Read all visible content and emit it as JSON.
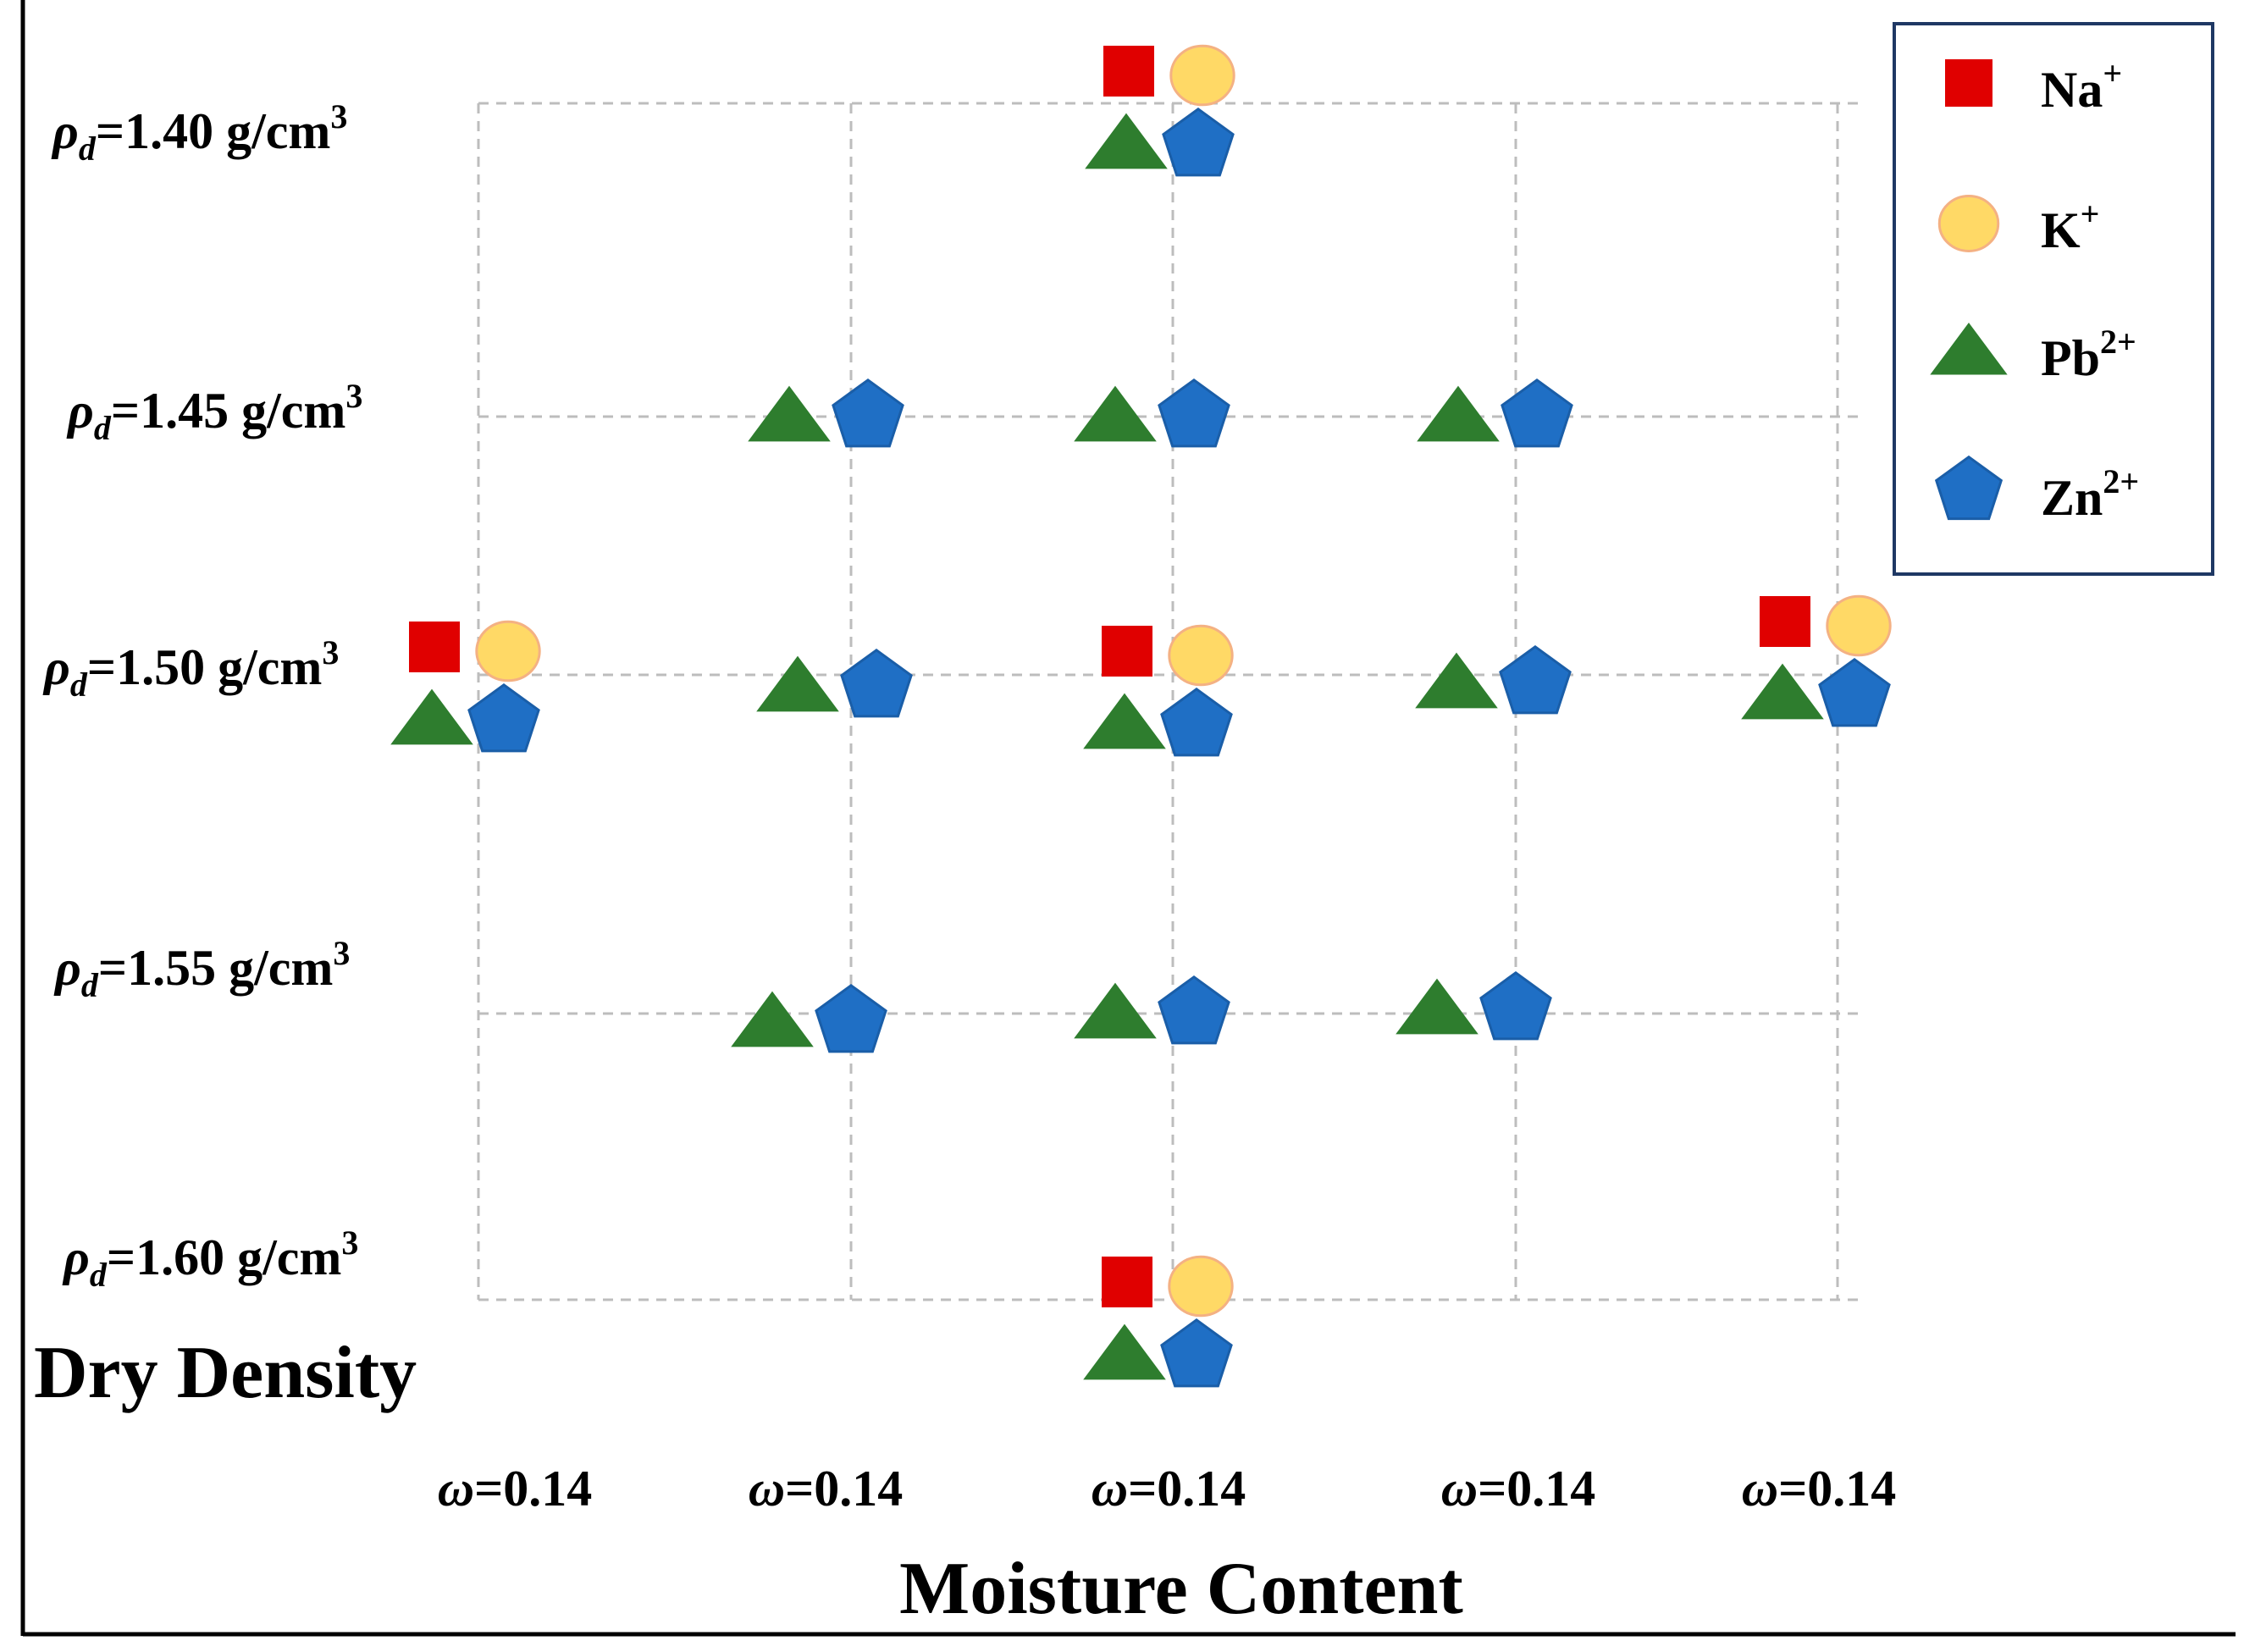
{
  "chart_data": {
    "type": "scatter",
    "title": "",
    "xlabel": "Moisture Content",
    "ylabel": "Dry Density",
    "x_tick_labels": [
      {
        "symbol": "ω",
        "text": "=0.14"
      },
      {
        "symbol": "ω",
        "text": "=0.14"
      },
      {
        "symbol": "ω",
        "text": "=0.14"
      },
      {
        "symbol": "ω",
        "text": "=0.14"
      },
      {
        "symbol": "ω",
        "text": "=0.14"
      }
    ],
    "y_tick_labels": [
      {
        "symbol": "ρ",
        "sub": "d",
        "text": "=1.40 g/cm",
        "sup": "3"
      },
      {
        "symbol": "ρ",
        "sub": "d",
        "text": "=1.45 g/cm",
        "sup": "3"
      },
      {
        "symbol": "ρ",
        "sub": "d",
        "text": "=1.50 g/cm",
        "sup": "3"
      },
      {
        "symbol": "ρ",
        "sub": "d",
        "text": "=1.55 g/cm",
        "sup": "3"
      },
      {
        "symbol": "ρ",
        "sub": "d",
        "text": "=1.60 g/cm",
        "sup": "3"
      }
    ],
    "legend_position": "top-right",
    "series": [
      {
        "name": "Na",
        "charge": "+",
        "marker": "square",
        "color": "#e00000",
        "stroke": "#e00000",
        "points": [
          {
            "col": 3,
            "row": 1
          },
          {
            "col": 1,
            "row": 3
          },
          {
            "col": 3,
            "row": 3
          },
          {
            "col": 5,
            "row": 3
          },
          {
            "col": 3,
            "row": 5
          }
        ]
      },
      {
        "name": "K",
        "charge": "+",
        "marker": "circle",
        "color": "#ffd966",
        "stroke": "#f4b183",
        "points": [
          {
            "col": 3,
            "row": 1
          },
          {
            "col": 1,
            "row": 3
          },
          {
            "col": 3,
            "row": 3
          },
          {
            "col": 5,
            "row": 3
          },
          {
            "col": 3,
            "row": 5
          }
        ]
      },
      {
        "name": "Pb",
        "charge": "2+",
        "marker": "triangle",
        "color": "#2e7d2e",
        "stroke": "#2e7d2e",
        "points": [
          {
            "col": 3,
            "row": 1
          },
          {
            "col": 2,
            "row": 2
          },
          {
            "col": 3,
            "row": 2
          },
          {
            "col": 4,
            "row": 2
          },
          {
            "col": 1,
            "row": 3
          },
          {
            "col": 2,
            "row": 3
          },
          {
            "col": 3,
            "row": 3
          },
          {
            "col": 4,
            "row": 3
          },
          {
            "col": 5,
            "row": 3
          },
          {
            "col": 2,
            "row": 4
          },
          {
            "col": 3,
            "row": 4
          },
          {
            "col": 4,
            "row": 4
          },
          {
            "col": 3,
            "row": 5
          }
        ]
      },
      {
        "name": "Zn",
        "charge": "2+",
        "marker": "pentagon",
        "color": "#1f6fc5",
        "stroke": "#1a5ea8",
        "points": [
          {
            "col": 3,
            "row": 1
          },
          {
            "col": 2,
            "row": 2
          },
          {
            "col": 3,
            "row": 2
          },
          {
            "col": 4,
            "row": 2
          },
          {
            "col": 1,
            "row": 3
          },
          {
            "col": 2,
            "row": 3
          },
          {
            "col": 3,
            "row": 3
          },
          {
            "col": 4,
            "row": 3
          },
          {
            "col": 5,
            "row": 3
          },
          {
            "col": 2,
            "row": 4
          },
          {
            "col": 3,
            "row": 4
          },
          {
            "col": 4,
            "row": 4
          },
          {
            "col": 3,
            "row": 5
          }
        ]
      }
    ]
  }
}
